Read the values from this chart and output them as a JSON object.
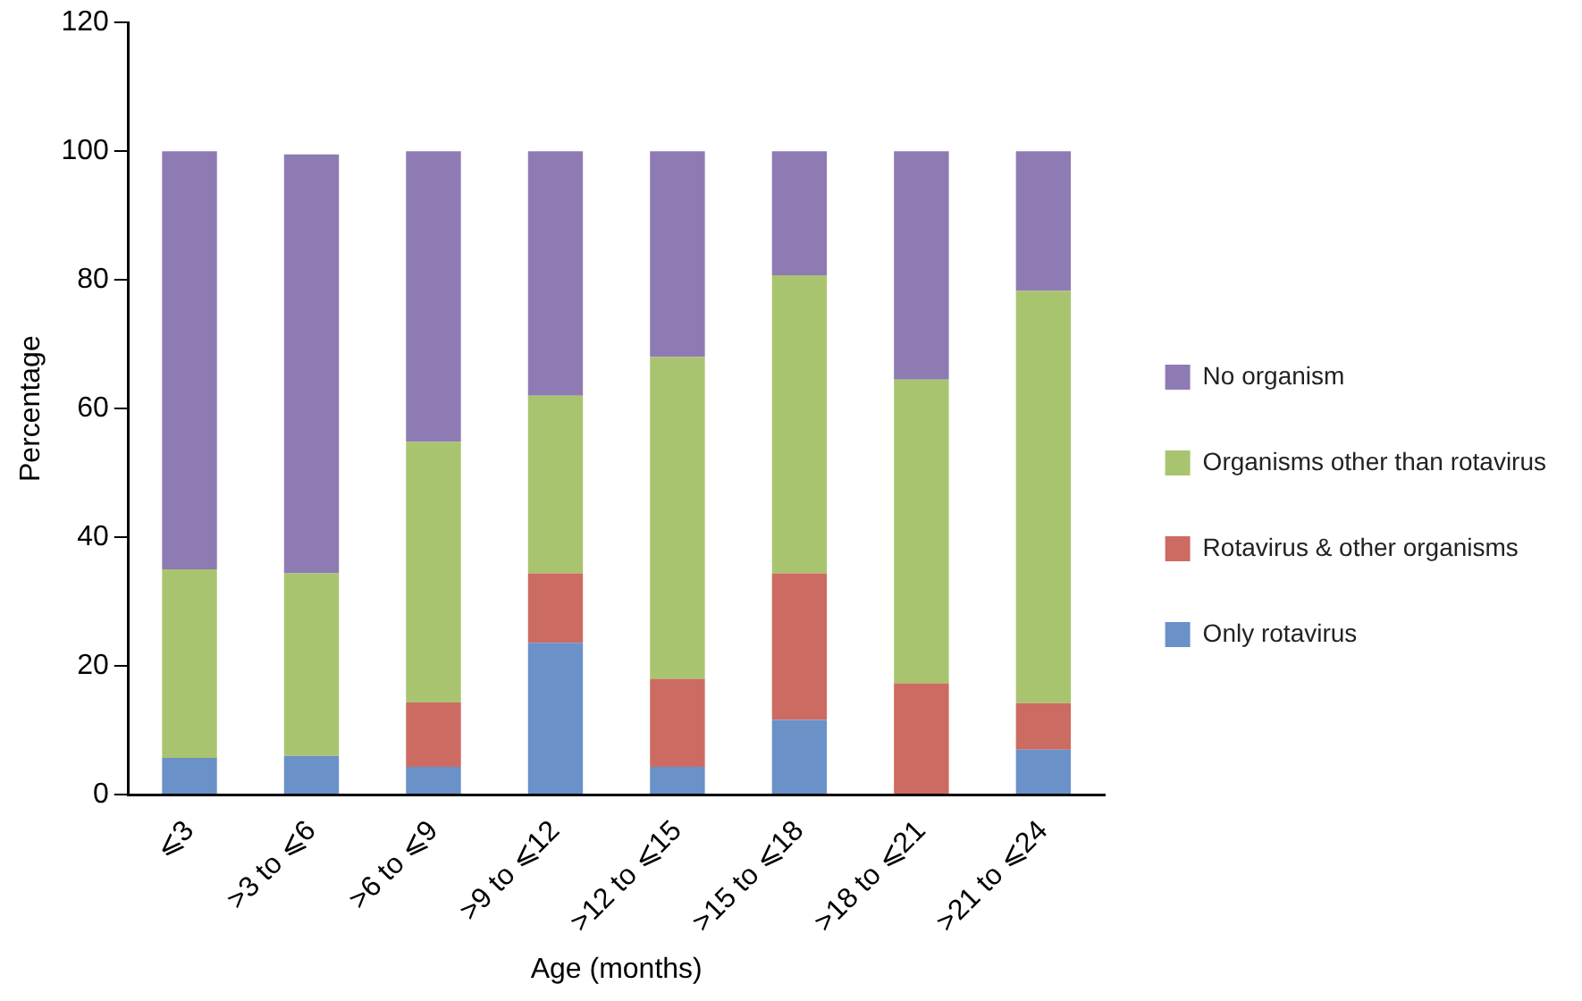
{
  "chart_data": {
    "type": "bar",
    "stacked": true,
    "xlabel": "Age (months)",
    "ylabel": "Percentage",
    "categories": [
      "⩽3",
      ">3 to ⩽6",
      ">6 to ⩽9",
      ">9 to ⩽12",
      ">12 to ⩽15",
      ">15 to ⩽18",
      ">18 to ⩽21",
      ">21 to ⩽24"
    ],
    "series": [
      {
        "name": "Only rotavirus",
        "color": "#6a91c8",
        "values": [
          5.7,
          6.0,
          4.3,
          23.6,
          4.3,
          11.6,
          0,
          7.0
        ]
      },
      {
        "name": "Rotavirus & other organisms",
        "color": "#cc6b62",
        "values": [
          0,
          0,
          10.0,
          10.8,
          13.7,
          22.8,
          17.3,
          7.2
        ]
      },
      {
        "name": "Organisms other than rotavirus",
        "color": "#a9c46f",
        "values": [
          29.3,
          28.4,
          40.5,
          27.6,
          50.0,
          46.3,
          47.2,
          64.1
        ]
      },
      {
        "name": "No organism",
        "color": "#8f7bb3",
        "values": [
          65.0,
          65.1,
          45.2,
          38.0,
          32.0,
          19.3,
          35.5,
          21.7
        ]
      }
    ],
    "ylim": [
      0,
      120
    ],
    "yticks": [
      0,
      20,
      40,
      60,
      80,
      100,
      120
    ],
    "grid": false,
    "legend": "right"
  }
}
